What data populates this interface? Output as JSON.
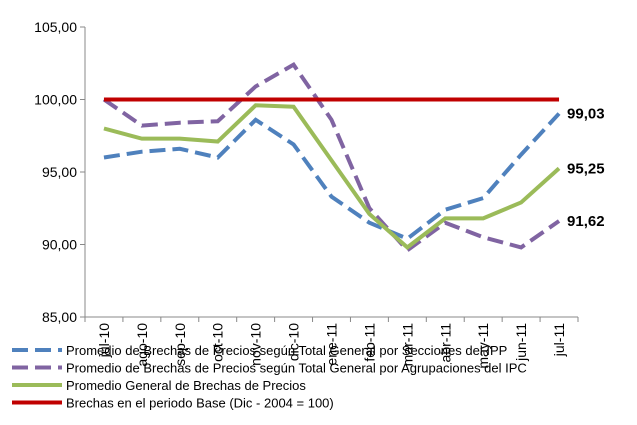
{
  "chart_data": {
    "type": "line",
    "categories": [
      "jul-10",
      "ago-10",
      "sep-10",
      "oct-10",
      "nov-10",
      "dic-10",
      "ene-11",
      "feb-11",
      "mar-11",
      "abr-11",
      "may-11",
      "jun-11",
      "jul-11"
    ],
    "series": [
      {
        "name": "Promedio de Brechas de Precios según Total  General por Secciones del IPP",
        "color": "#4f81bd",
        "dash": true,
        "values": [
          96.0,
          96.4,
          96.6,
          96.0,
          98.6,
          96.9,
          93.3,
          91.5,
          90.4,
          92.4,
          93.2,
          96.2,
          99.03
        ],
        "value_labels": [
          null,
          null,
          null,
          null,
          null,
          null,
          null,
          null,
          null,
          null,
          null,
          null,
          "99,03"
        ]
      },
      {
        "name": "Promedio de Brechas de Precios según Total  General por Agrupaciones del IPC",
        "color": "#8064a2",
        "dash": true,
        "values": [
          100.0,
          98.2,
          98.4,
          98.5,
          100.9,
          102.4,
          98.6,
          92.5,
          89.6,
          91.5,
          90.5,
          89.8,
          91.62
        ],
        "value_labels": [
          null,
          null,
          null,
          null,
          null,
          null,
          null,
          null,
          null,
          null,
          null,
          null,
          "91,62"
        ]
      },
      {
        "name": "Promedio General de Brechas de Precios",
        "color": "#9bbb59",
        "dash": false,
        "values": [
          98.0,
          97.3,
          97.3,
          97.1,
          99.6,
          99.5,
          95.8,
          92.1,
          89.8,
          91.8,
          91.8,
          92.9,
          95.25
        ],
        "value_labels": [
          null,
          null,
          null,
          null,
          null,
          null,
          null,
          null,
          null,
          null,
          null,
          null,
          "95,25"
        ]
      },
      {
        "name": "Brechas en el periodo Base (Dic - 2004 = 100)",
        "color": "#c00000",
        "dash": false,
        "values": [
          100,
          100,
          100,
          100,
          100,
          100,
          100,
          100,
          100,
          100,
          100,
          100,
          100
        ]
      }
    ],
    "label_colors": [
      "#4f81bd",
      "#8064a2",
      "#4f6228"
    ],
    "ylim": [
      85,
      105
    ],
    "yticks": [
      {
        "value": 85,
        "label": "85,00"
      },
      {
        "value": 90,
        "label": "90,00"
      },
      {
        "value": 95,
        "label": "95,00"
      },
      {
        "value": 100,
        "label": "100,00"
      },
      {
        "value": 105,
        "label": "105,00"
      }
    ]
  }
}
